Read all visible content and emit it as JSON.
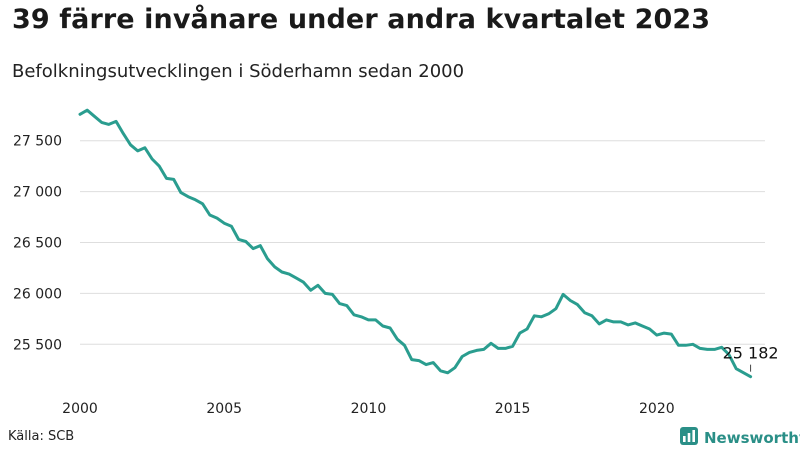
{
  "header": {
    "title": "39 färre invånare under andra kvartalet 2023",
    "subtitle": "Befolkningsutvecklingen i Söderhamn sedan 2000"
  },
  "footer": {
    "source": "Källa: SCB",
    "brand": "Newsworthy",
    "brand_icon": "bar-chart-logo-icon"
  },
  "colors": {
    "line": "#2a9d8f",
    "grid": "#dedede",
    "brand": "#2a8f87"
  },
  "chart_data": {
    "type": "line",
    "title": "39 färre invånare under andra kvartalet 2023",
    "subtitle": "Befolkningsutvecklingen i Söderhamn sedan 2000",
    "xlabel": "",
    "ylabel": "",
    "xlim": [
      2000,
      2023.75
    ],
    "ylim": [
      25100,
      27900
    ],
    "grid": true,
    "x_ticks": [
      2000,
      2005,
      2010,
      2015,
      2020
    ],
    "x_tick_labels": [
      "2000",
      "2005",
      "2010",
      "2015",
      "2020"
    ],
    "y_ticks": [
      25500,
      26000,
      26500,
      27000,
      27500
    ],
    "y_tick_labels": [
      "25 500",
      "26 000",
      "26 500",
      "27 000",
      "27 500"
    ],
    "annotation": {
      "x": 2023.25,
      "y": 25182,
      "text": "25 182"
    },
    "series": [
      {
        "name": "",
        "x": [
          2000.0,
          2000.25,
          2000.5,
          2000.75,
          2001.0,
          2001.25,
          2001.5,
          2001.75,
          2002.0,
          2002.25,
          2002.5,
          2002.75,
          2003.0,
          2003.25,
          2003.5,
          2003.75,
          2004.0,
          2004.25,
          2004.5,
          2004.75,
          2005.0,
          2005.25,
          2005.5,
          2005.75,
          2006.0,
          2006.25,
          2006.5,
          2006.75,
          2007.0,
          2007.25,
          2007.5,
          2007.75,
          2008.0,
          2008.25,
          2008.5,
          2008.75,
          2009.0,
          2009.25,
          2009.5,
          2009.75,
          2010.0,
          2010.25,
          2010.5,
          2010.75,
          2011.0,
          2011.25,
          2011.5,
          2011.75,
          2012.0,
          2012.25,
          2012.5,
          2012.75,
          2013.0,
          2013.25,
          2013.5,
          2013.75,
          2014.0,
          2014.25,
          2014.5,
          2014.75,
          2015.0,
          2015.25,
          2015.5,
          2015.75,
          2016.0,
          2016.25,
          2016.5,
          2016.75,
          2017.0,
          2017.25,
          2017.5,
          2017.75,
          2018.0,
          2018.25,
          2018.5,
          2018.75,
          2019.0,
          2019.25,
          2019.5,
          2019.75,
          2020.0,
          2020.25,
          2020.5,
          2020.75,
          2021.0,
          2021.25,
          2021.5,
          2021.75,
          2022.0,
          2022.25,
          2022.5,
          2022.75,
          2023.0,
          2023.25
        ],
        "values": [
          27760,
          27800,
          27740,
          27680,
          27660,
          27690,
          27570,
          27460,
          27400,
          27430,
          27320,
          27250,
          27130,
          27120,
          26990,
          26950,
          26920,
          26880,
          26770,
          26740,
          26690,
          26660,
          26530,
          26510,
          26440,
          26470,
          26340,
          26260,
          26210,
          26190,
          26150,
          26110,
          26030,
          26080,
          26000,
          25990,
          25900,
          25880,
          25790,
          25770,
          25740,
          25740,
          25680,
          25660,
          25550,
          25490,
          25350,
          25340,
          25300,
          25320,
          25240,
          25220,
          25270,
          25380,
          25420,
          25440,
          25450,
          25510,
          25460,
          25460,
          25480,
          25610,
          25650,
          25780,
          25770,
          25800,
          25850,
          25990,
          25930,
          25890,
          25810,
          25780,
          25700,
          25740,
          25720,
          25720,
          25690,
          25710,
          25680,
          25650,
          25590,
          25610,
          25600,
          25490,
          25490,
          25500,
          25460,
          25450,
          25450,
          25470,
          25400,
          25260,
          25221,
          25182
        ]
      }
    ]
  }
}
